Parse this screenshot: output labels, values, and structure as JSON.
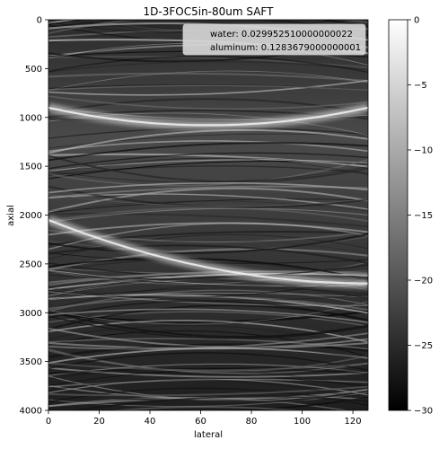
{
  "chart_data": {
    "type": "heatmap",
    "title": "1D-3FOC5in-80um SAFT",
    "xlabel": "lateral",
    "ylabel": "axial",
    "xlim": [
      0,
      126
    ],
    "ylim": [
      4000,
      0
    ],
    "x_ticks": [
      0,
      20,
      40,
      60,
      80,
      100,
      120
    ],
    "y_ticks": [
      0,
      500,
      1000,
      1500,
      2000,
      2500,
      3000,
      3500,
      4000
    ],
    "colormap": "gray",
    "colorbar": {
      "range": [
        -30,
        0
      ],
      "ticks": [
        0,
        -5,
        -10,
        -15,
        -20,
        -25,
        -30
      ]
    },
    "legend": {
      "placement": "top-right",
      "entries": [
        {
          "label": "water: 0.029952510000000022"
        },
        {
          "label": "aluminum: 0.1283679000000001"
        }
      ]
    },
    "bright_bands": [
      {
        "description": "upper arc",
        "x_start": 0,
        "y_at_start": 900,
        "x_vertex": 63,
        "y_vertex": 1080,
        "curvature": 1
      },
      {
        "description": "lower arc",
        "x_start": 0,
        "y_at_start": 2050,
        "x_vertex": 126,
        "y_vertex": 2700,
        "curvature": 1
      }
    ]
  }
}
